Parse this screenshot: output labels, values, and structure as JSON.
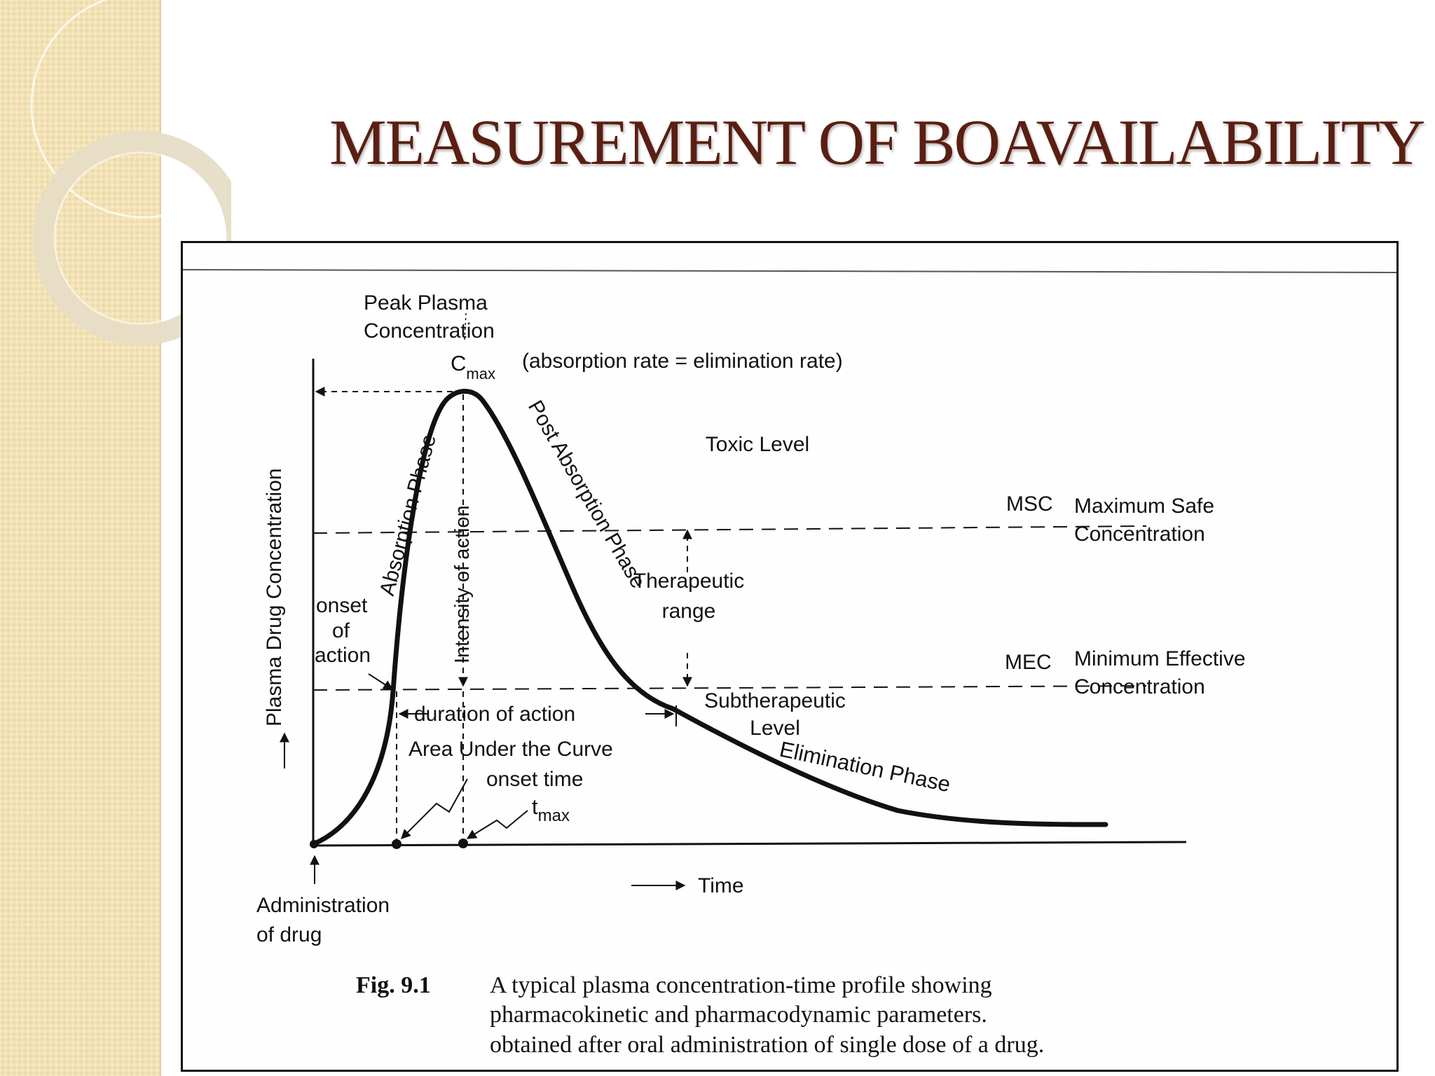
{
  "slide": {
    "title": "MEASUREMENT OF BOAVAILABILITY"
  },
  "figure": {
    "labels": {
      "peak_line1": "Peak Plasma",
      "peak_line2": "Concentration",
      "cmax_main": "C",
      "cmax_sub": "max",
      "cmax_note": "(absorption rate = elimination rate)",
      "y_axis": "Plasma Drug Concentration",
      "absorption_phase": "Absorption Phase",
      "intensity": "Intensity of action",
      "post_absorption": "Post Absorption Phase",
      "toxic_level": "Toxic Level",
      "msc_abbr": "MSC",
      "msc_line1": "Maximum Safe",
      "msc_line2": "Concentration",
      "therapeutic_line1": "Therapeutic",
      "therapeutic_line2": "range",
      "mec_abbr": "MEC",
      "mec_line1": "Minimum Effective",
      "mec_line2": "Concentration",
      "onset_line1": "onset",
      "onset_line2": "of",
      "onset_line3": "action",
      "duration": "duration of action",
      "subtherapeutic_line1": "Subtherapeutic",
      "subtherapeutic_line2": "Level",
      "auc": "Area Under the Curve",
      "onset_time": "onset time",
      "tmax_main": "t",
      "tmax_sub": "max",
      "elimination_phase": "Elimination Phase",
      "administration_line1": "Administration",
      "administration_line2": "of drug",
      "x_axis": "Time"
    },
    "caption": {
      "number": "Fig. 9.1",
      "line1": "A typical plasma concentration-time profile showing",
      "line2": "pharmacokinetic and pharmacodynamic parameters.",
      "line3": "obtained after oral administration of single dose of a drug."
    }
  }
}
